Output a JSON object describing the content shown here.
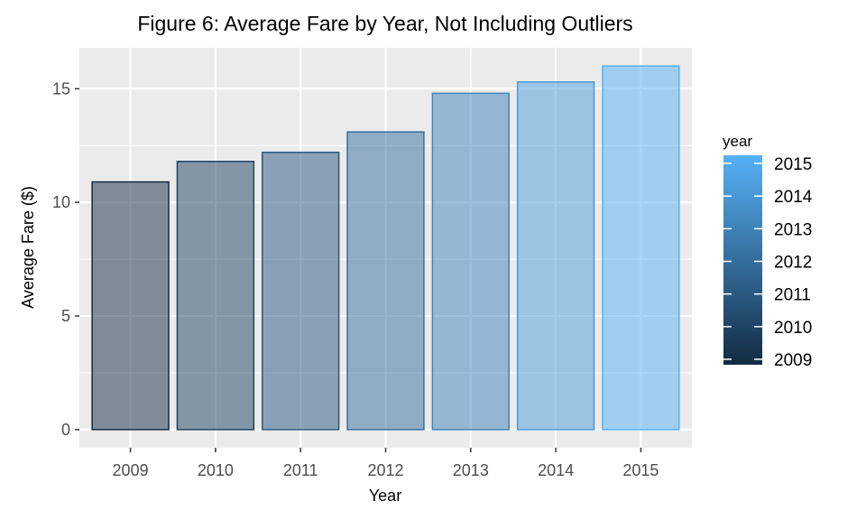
{
  "chart_data": {
    "type": "bar",
    "title": "Figure 6: Average Fare by Year, Not Including Outliers",
    "xlabel": "Year",
    "ylabel": "Average Fare ($)",
    "categories": [
      "2009",
      "2010",
      "2011",
      "2012",
      "2013",
      "2014",
      "2015"
    ],
    "values": [
      10.9,
      11.8,
      12.2,
      13.1,
      14.8,
      15.3,
      16.0
    ],
    "ylim": [
      -0.8,
      16.8
    ],
    "yticks": [
      0,
      5,
      10,
      15
    ],
    "grid": true,
    "legend": {
      "title": "year",
      "position": "right",
      "type": "colorbar",
      "labels": [
        "2015",
        "2014",
        "2013",
        "2012",
        "2011",
        "2010",
        "2009"
      ],
      "color_low": "#132b43",
      "color_high": "#56b1f7"
    },
    "bar_alpha": 0.5,
    "panel_background": "#ebebeb",
    "grid_color": "#ffffff"
  }
}
